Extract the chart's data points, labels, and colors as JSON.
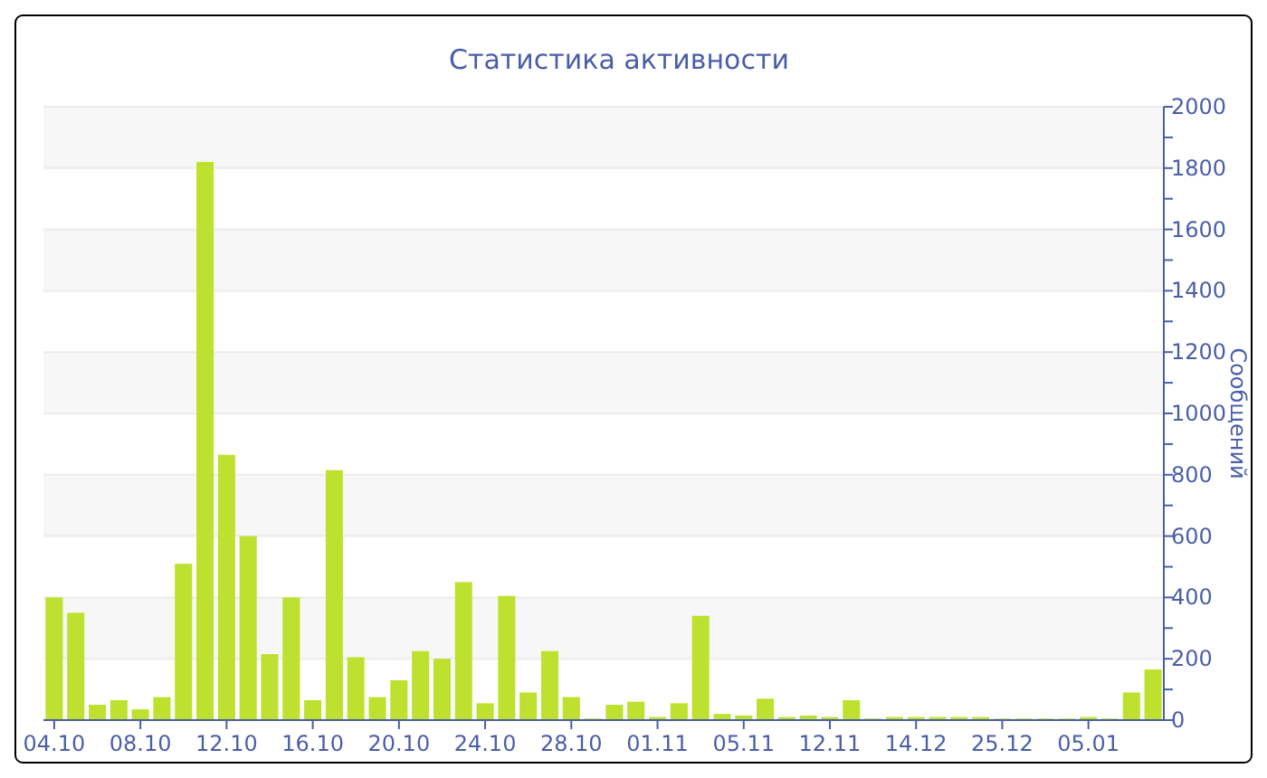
{
  "chart_data": {
    "type": "bar",
    "title": "Статистика активности",
    "ylabel": "Сообщений",
    "categories": [
      "04.10",
      null,
      null,
      null,
      "08.10",
      null,
      null,
      null,
      "12.10",
      null,
      null,
      null,
      "16.10",
      null,
      null,
      null,
      "20.10",
      null,
      null,
      null,
      "24.10",
      null,
      null,
      null,
      "28.10",
      null,
      null,
      null,
      "01.11",
      null,
      null,
      null,
      "05.11",
      null,
      null,
      null,
      "12.11",
      null,
      null,
      null,
      "14.12",
      null,
      null,
      null,
      "25.12",
      null,
      null,
      null,
      "05.01",
      null,
      null,
      null
    ],
    "values": [
      400,
      350,
      50,
      65,
      35,
      75,
      510,
      1820,
      865,
      600,
      215,
      400,
      65,
      815,
      205,
      75,
      130,
      225,
      200,
      450,
      55,
      405,
      90,
      225,
      75,
      5,
      50,
      60,
      10,
      55,
      340,
      20,
      15,
      70,
      10,
      15,
      10,
      65,
      5,
      10,
      10,
      10,
      10,
      10,
      5,
      5,
      5,
      5,
      10,
      5,
      90,
      165
    ],
    "color": "#bde12e",
    "ylim": [
      0,
      2000
    ],
    "yticks": [
      0,
      200,
      400,
      600,
      800,
      1000,
      1200,
      1400,
      1600,
      1800,
      2000
    ],
    "grid": "y"
  }
}
